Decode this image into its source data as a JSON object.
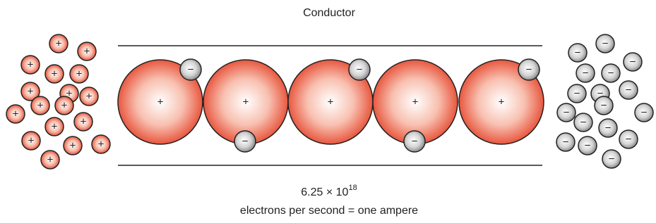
{
  "title": "Conductor",
  "current": {
    "base": "6.25 × 10",
    "exponent": "18",
    "caption": "electrons per second = one ampere"
  },
  "symbols": {
    "positive": "+",
    "negative": "−"
  }
}
